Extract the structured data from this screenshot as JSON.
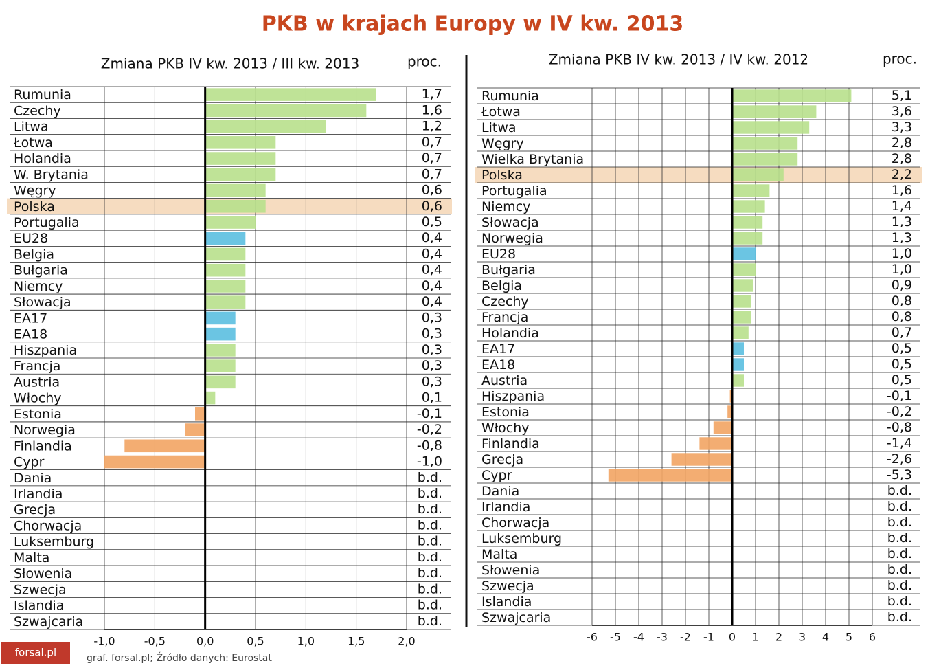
{
  "title": "PKB w krajach Europy w IV kw. 2013",
  "source": "graf. forsal.pl; Źródło danych: Eurostat",
  "logo": "forsal.pl",
  "chart_data": [
    {
      "type": "bar",
      "orientation": "horizontal",
      "subtitle": "Zmiana PKB IV kw. 2013 / III kw. 2013",
      "unit": "proc.",
      "categories": [
        "Rumunia",
        "Czechy",
        "Litwa",
        "Łotwa",
        "Holandia",
        "W. Brytania",
        "Węgry",
        "Polska",
        "Portugalia",
        "EU28",
        "Belgia",
        "Bułgaria",
        "Niemcy",
        "Słowacja",
        "EA17",
        "EA18",
        "Hiszpania",
        "Francja",
        "Austria",
        "Włochy",
        "Estonia",
        "Norwegia",
        "Finlandia",
        "Cypr",
        "Dania",
        "Irlandia",
        "Grecja",
        "Chorwacja",
        "Luksemburg",
        "Malta",
        "Słowenia",
        "Szwecja",
        "Islandia",
        "Szwajcaria"
      ],
      "values": [
        1.7,
        1.6,
        1.2,
        0.7,
        0.7,
        0.7,
        0.6,
        0.6,
        0.5,
        0.4,
        0.4,
        0.4,
        0.4,
        0.4,
        0.3,
        0.3,
        0.3,
        0.3,
        0.3,
        0.1,
        -0.1,
        -0.2,
        -0.8,
        -1.0,
        null,
        null,
        null,
        null,
        null,
        null,
        null,
        null,
        null,
        null
      ],
      "value_labels": [
        "1,7",
        "1,6",
        "1,2",
        "0,7",
        "0,7",
        "0,7",
        "0,6",
        "0,6",
        "0,5",
        "0,4",
        "0,4",
        "0,4",
        "0,4",
        "0,4",
        "0,3",
        "0,3",
        "0,3",
        "0,3",
        "0,3",
        "0,1",
        "-0,1",
        "-0,2",
        "-0,8",
        "-1,0",
        "b.d.",
        "b.d.",
        "b.d.",
        "b.d.",
        "b.d.",
        "b.d.",
        "b.d.",
        "b.d.",
        "b.d.",
        "b.d."
      ],
      "colors": [
        "#b8e08c",
        "#b8e08c",
        "#b8e08c",
        "#b8e08c",
        "#b8e08c",
        "#b8e08c",
        "#b8e08c",
        "#b8e08c",
        "#b8e08c",
        "#5bbfe0",
        "#b8e08c",
        "#b8e08c",
        "#b8e08c",
        "#b8e08c",
        "#5bbfe0",
        "#5bbfe0",
        "#b8e08c",
        "#b8e08c",
        "#b8e08c",
        "#b8e08c",
        "#f2a463",
        "#f2a463",
        "#f2a463",
        "#f2a463",
        null,
        null,
        null,
        null,
        null,
        null,
        null,
        null,
        null,
        null
      ],
      "highlight": "Polska",
      "highlight_color": "#f6dcc0",
      "xlim": [
        -1.0,
        2.0
      ],
      "xticks": [
        {
          "value": -1.0,
          "label": "-1,0"
        },
        {
          "value": -0.5,
          "label": "-0,5"
        },
        {
          "value": 0,
          "label": "0,0"
        },
        {
          "value": 0.5,
          "label": "0,5"
        },
        {
          "value": 1.0,
          "label": "1,0"
        },
        {
          "value": 1.5,
          "label": "1,5"
        },
        {
          "value": 2.0,
          "label": "2,0"
        }
      ],
      "grid": true
    },
    {
      "type": "bar",
      "orientation": "horizontal",
      "subtitle": "Zmiana PKB IV kw. 2013 / IV kw. 2012",
      "unit": "proc.",
      "categories": [
        "Rumunia",
        "Łotwa",
        "Litwa",
        "Węgry",
        "Wielka Brytania",
        "Polska",
        "Portugalia",
        "Niemcy",
        "Słowacja",
        "Norwegia",
        "EU28",
        "Bułgaria",
        "Belgia",
        "Czechy",
        "Francja",
        "Holandia",
        "EA17",
        "EA18",
        "Austria",
        "Hiszpania",
        "Estonia",
        "Włochy",
        "Finlandia",
        "Grecja",
        "Cypr",
        "Dania",
        "Irlandia",
        "Chorwacja",
        "Luksemburg",
        "Malta",
        "Słowenia",
        "Szwecja",
        "Islandia",
        "Szwajcaria"
      ],
      "values": [
        5.1,
        3.6,
        3.3,
        2.8,
        2.8,
        2.2,
        1.6,
        1.4,
        1.3,
        1.3,
        1.0,
        1.0,
        0.9,
        0.8,
        0.8,
        0.7,
        0.5,
        0.5,
        0.5,
        -0.1,
        -0.2,
        -0.8,
        -1.4,
        -2.6,
        -5.3,
        null,
        null,
        null,
        null,
        null,
        null,
        null,
        null,
        null
      ],
      "value_labels": [
        "5,1",
        "3,6",
        "3,3",
        "2,8",
        "2,8",
        "2,2",
        "1,6",
        "1,4",
        "1,3",
        "1,3",
        "1,0",
        "1,0",
        "0,9",
        "0,8",
        "0,8",
        "0,7",
        "0,5",
        "0,5",
        "0,5",
        "-0,1",
        "-0,2",
        "-0,8",
        "-1,4",
        "-2,6",
        "-5,3",
        "b.d.",
        "b.d.",
        "b.d.",
        "b.d.",
        "b.d.",
        "b.d.",
        "b.d.",
        "b.d.",
        "b.d."
      ],
      "colors": [
        "#b8e08c",
        "#b8e08c",
        "#b8e08c",
        "#b8e08c",
        "#b8e08c",
        "#b8e08c",
        "#b8e08c",
        "#b8e08c",
        "#b8e08c",
        "#b8e08c",
        "#5bbfe0",
        "#b8e08c",
        "#b8e08c",
        "#b8e08c",
        "#b8e08c",
        "#b8e08c",
        "#5bbfe0",
        "#5bbfe0",
        "#b8e08c",
        "#f2a463",
        "#f2a463",
        "#f2a463",
        "#f2a463",
        "#f2a463",
        "#f2a463",
        null,
        null,
        null,
        null,
        null,
        null,
        null,
        null,
        null
      ],
      "highlight": "Polska",
      "highlight_color": "#f6dcc0",
      "xlim": [
        -6,
        6
      ],
      "xticks": [
        -6,
        -5,
        -4,
        -3,
        -2,
        -1,
        0,
        1,
        2,
        3,
        4,
        5,
        6
      ],
      "grid": true
    }
  ]
}
